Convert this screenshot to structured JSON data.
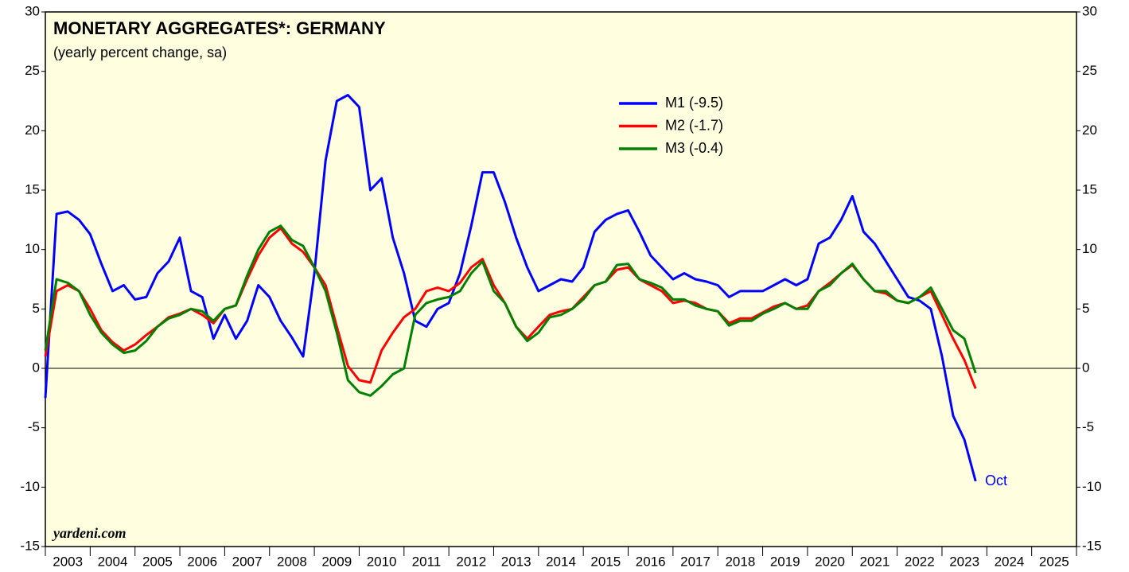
{
  "chart_data": {
    "type": "line",
    "title": "MONETARY AGGREGATES*: GERMANY",
    "subtitle": "(yearly percent change, sa)",
    "annotations": [
      "Oct",
      "yardeni.com"
    ],
    "x": [
      2003,
      2003.25,
      2003.5,
      2003.75,
      2004,
      2004.25,
      2004.5,
      2004.75,
      2005,
      2005.25,
      2005.5,
      2005.75,
      2006,
      2006.25,
      2006.5,
      2006.75,
      2007,
      2007.25,
      2007.5,
      2007.75,
      2008,
      2008.25,
      2008.5,
      2008.75,
      2009,
      2009.25,
      2009.5,
      2009.75,
      2010,
      2010.25,
      2010.5,
      2010.75,
      2011,
      2011.25,
      2011.5,
      2011.75,
      2012,
      2012.25,
      2012.5,
      2012.75,
      2013,
      2013.25,
      2013.5,
      2013.75,
      2014,
      2014.25,
      2014.5,
      2014.75,
      2015,
      2015.25,
      2015.5,
      2015.75,
      2016,
      2016.25,
      2016.5,
      2016.75,
      2017,
      2017.25,
      2017.5,
      2017.75,
      2018,
      2018.25,
      2018.5,
      2018.75,
      2019,
      2019.25,
      2019.5,
      2019.75,
      2020,
      2020.25,
      2020.5,
      2020.75,
      2021,
      2021.25,
      2021.5,
      2021.75,
      2022,
      2022.25,
      2022.5,
      2022.75,
      2023,
      2023.25,
      2023.5,
      2023.75
    ],
    "series": [
      {
        "name": "M1 (-9.5)",
        "color": "#0000ff",
        "values": [
          -2.5,
          13,
          13.2,
          12.5,
          11.3,
          8.8,
          6.5,
          7,
          5.8,
          6,
          8,
          9,
          11,
          6.5,
          6,
          2.5,
          4.5,
          2.5,
          4,
          7,
          6,
          4,
          2.6,
          1,
          8,
          17.5,
          22.5,
          23,
          22,
          15,
          16,
          11,
          8,
          4,
          3.5,
          5,
          5.5,
          8,
          12,
          16.5,
          16.5,
          14,
          11,
          8.5,
          6.5,
          7,
          7.5,
          7.3,
          8.5,
          11.5,
          12.5,
          13,
          13.3,
          11.5,
          9.5,
          8.5,
          7.5,
          8,
          7.5,
          7.3,
          7,
          6,
          6.5,
          6.5,
          6.5,
          7,
          7.5,
          7,
          7.5,
          10.5,
          11,
          12.5,
          14.5,
          11.5,
          10.5,
          9,
          7.5,
          6,
          5.7,
          5,
          1,
          -4,
          -6,
          -9.5
        ]
      },
      {
        "name": "M2 (-1.7)",
        "color": "#ff0000",
        "values": [
          1,
          6.5,
          7,
          6.5,
          5,
          3.2,
          2.2,
          1.5,
          2,
          2.8,
          3.5,
          4.3,
          4.6,
          5,
          4.5,
          3.8,
          5,
          5.3,
          7.5,
          9.5,
          11,
          11.8,
          10.5,
          9.8,
          8.5,
          7,
          3.5,
          0.2,
          -1,
          -1.2,
          1.5,
          3,
          4.3,
          5,
          6.5,
          6.8,
          6.5,
          7.2,
          8.5,
          9.2,
          7,
          5.5,
          3.5,
          2.5,
          3.5,
          4.5,
          4.8,
          5,
          6,
          7,
          7.3,
          8.3,
          8.5,
          7.5,
          7,
          6.5,
          5.5,
          5.7,
          5.5,
          5,
          4.8,
          3.8,
          4.2,
          4.2,
          4.7,
          5.2,
          5.5,
          5,
          5.3,
          6.5,
          7.2,
          8,
          8.7,
          7.5,
          6.5,
          6.3,
          5.7,
          5.5,
          6,
          6.5,
          4.5,
          2.5,
          0.7,
          -1.7
        ]
      },
      {
        "name": "M3 (-0.4)",
        "color": "#008000",
        "values": [
          1.5,
          7.5,
          7.2,
          6.5,
          4.5,
          3,
          2,
          1.3,
          1.5,
          2.3,
          3.5,
          4.2,
          4.5,
          5,
          4.8,
          4,
          5,
          5.3,
          7.8,
          10,
          11.5,
          12,
          10.8,
          10.3,
          8.5,
          6.5,
          3,
          -1,
          -2,
          -2.3,
          -1.5,
          -0.5,
          0,
          4.5,
          5.5,
          5.8,
          6,
          6.5,
          8,
          9,
          6.5,
          5.5,
          3.5,
          2.3,
          3,
          4.3,
          4.5,
          5,
          5.8,
          7,
          7.3,
          8.7,
          8.8,
          7.5,
          7.2,
          6.8,
          5.8,
          5.8,
          5.3,
          5,
          4.8,
          3.6,
          4,
          4,
          4.6,
          5,
          5.5,
          5,
          5,
          6.5,
          7,
          8,
          8.8,
          7.5,
          6.5,
          6.5,
          5.7,
          5.5,
          6,
          6.8,
          5,
          3.2,
          2.5,
          -0.4
        ]
      }
    ],
    "xlim": [
      2003,
      2026
    ],
    "xticks": [
      {
        "value": 2003.5,
        "label": "2003"
      },
      {
        "value": 2004.5,
        "label": "2004"
      },
      {
        "value": 2005.5,
        "label": "2005"
      },
      {
        "value": 2006.5,
        "label": "2006"
      },
      {
        "value": 2007.5,
        "label": "2007"
      },
      {
        "value": 2008.5,
        "label": "2008"
      },
      {
        "value": 2009.5,
        "label": "2009"
      },
      {
        "value": 2010.5,
        "label": "2010"
      },
      {
        "value": 2011.5,
        "label": "2011"
      },
      {
        "value": 2012.5,
        "label": "2012"
      },
      {
        "value": 2013.5,
        "label": "2013"
      },
      {
        "value": 2014.5,
        "label": "2014"
      },
      {
        "value": 2015.5,
        "label": "2015"
      },
      {
        "value": 2016.5,
        "label": "2016"
      },
      {
        "value": 2017.5,
        "label": "2017"
      },
      {
        "value": 2018.5,
        "label": "2018"
      },
      {
        "value": 2019.5,
        "label": "2019"
      },
      {
        "value": 2020.5,
        "label": "2020"
      },
      {
        "value": 2021.5,
        "label": "2021"
      },
      {
        "value": 2022.5,
        "label": "2022"
      },
      {
        "value": 2023.5,
        "label": "2023"
      },
      {
        "value": 2024.5,
        "label": "2024"
      },
      {
        "value": 2025.5,
        "label": "2025"
      }
    ],
    "ylim": [
      -15,
      30
    ],
    "yticks": [
      -15,
      -10,
      -5,
      0,
      5,
      10,
      15,
      20,
      25,
      30
    ],
    "background": "#ffffe0"
  }
}
